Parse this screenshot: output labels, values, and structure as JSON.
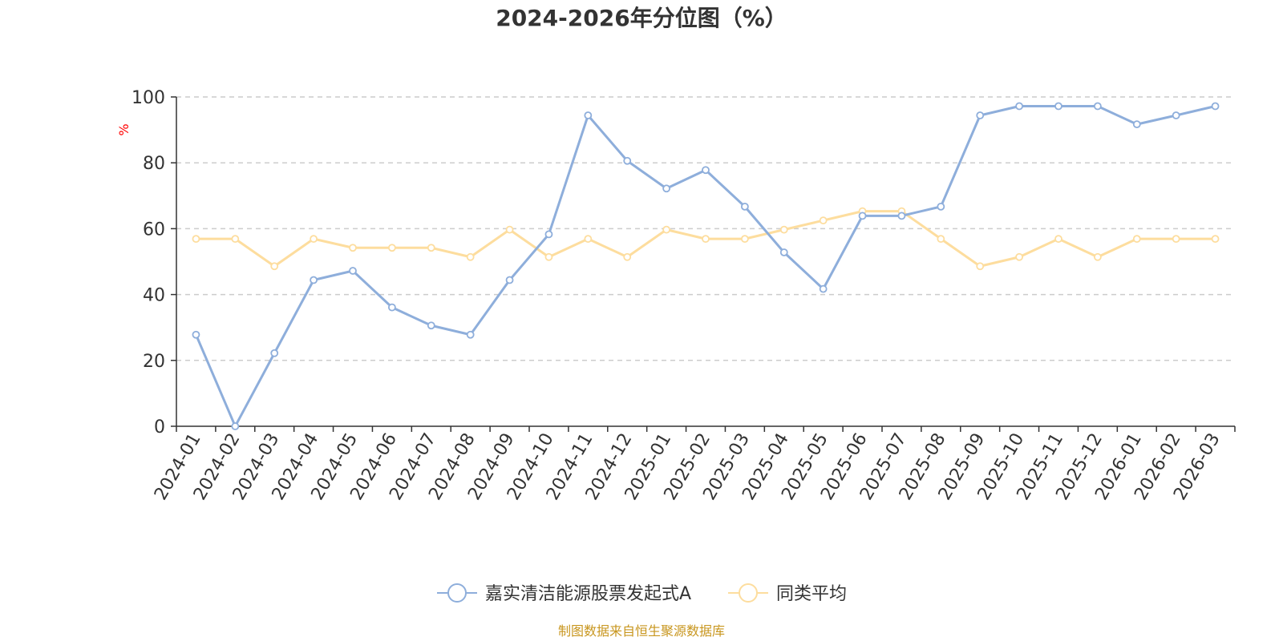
{
  "chart_data": {
    "type": "line",
    "title": "2024-2026年分位图（%）",
    "ylabel": "%",
    "ylim": [
      0,
      100
    ],
    "yticks": [
      0,
      20,
      40,
      60,
      80,
      100
    ],
    "grid": true,
    "legend_position": "bottom-center",
    "categories": [
      "2024-01",
      "2024-02",
      "2024-03",
      "2024-04",
      "2024-05",
      "2024-06",
      "2024-07",
      "2024-08",
      "2024-09",
      "2024-10",
      "2024-11",
      "2024-12",
      "2025-01",
      "2025-02",
      "2025-03",
      "2025-04",
      "2025-05",
      "2025-06",
      "2025-07",
      "2025-08",
      "2025-09",
      "2025-10",
      "2025-11",
      "2025-12",
      "2026-01",
      "2026-02",
      "2026-03"
    ],
    "series": [
      {
        "name": "嘉实清洁能源股票发起式A",
        "color": "#8eaedb",
        "values": [
          27.8,
          0,
          22.2,
          44.4,
          47.2,
          36.1,
          30.6,
          27.8,
          44.4,
          58.3,
          94.4,
          80.6,
          72.2,
          77.8,
          66.7,
          52.8,
          41.7,
          63.9,
          63.9,
          66.7,
          94.4,
          97.2,
          97.2,
          97.2,
          91.7,
          94.4,
          97.2
        ]
      },
      {
        "name": "同类平均",
        "color": "#fddd9e",
        "values": [
          56.9,
          56.9,
          48.6,
          56.9,
          54.2,
          54.2,
          54.2,
          51.4,
          59.7,
          51.4,
          56.9,
          51.4,
          59.7,
          56.9,
          56.9,
          59.7,
          62.5,
          65.3,
          65.3,
          56.9,
          48.6,
          51.4,
          56.9,
          51.4,
          56.9,
          56.9,
          56.9
        ]
      }
    ]
  },
  "footer": {
    "source": "制图数据来自恒生聚源数据库"
  }
}
